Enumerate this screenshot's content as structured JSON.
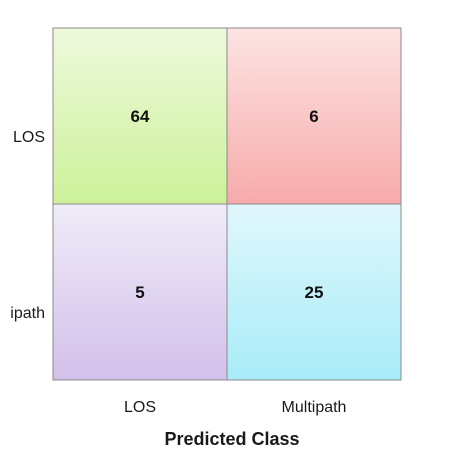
{
  "chart_data": {
    "type": "heatmap",
    "title": "",
    "xlabel": "Predicted Class",
    "ylabel": "",
    "x_categories": [
      "LOS",
      "Multipath"
    ],
    "y_categories": [
      "LOS",
      "ipath"
    ],
    "values": [
      [
        64,
        6
      ],
      [
        5,
        25
      ]
    ],
    "cell_colors": [
      [
        {
          "top": "#eef9dc",
          "bottom": "#cdf19a"
        },
        {
          "top": "#fde4e4",
          "bottom": "#f7aaaa"
        }
      ],
      [
        {
          "top": "#f0ecf8",
          "bottom": "#d2c0ea"
        },
        {
          "top": "#e0f7fc",
          "bottom": "#a8ecf8"
        }
      ]
    ],
    "border_color": "#8a8a8a",
    "grid": false
  }
}
